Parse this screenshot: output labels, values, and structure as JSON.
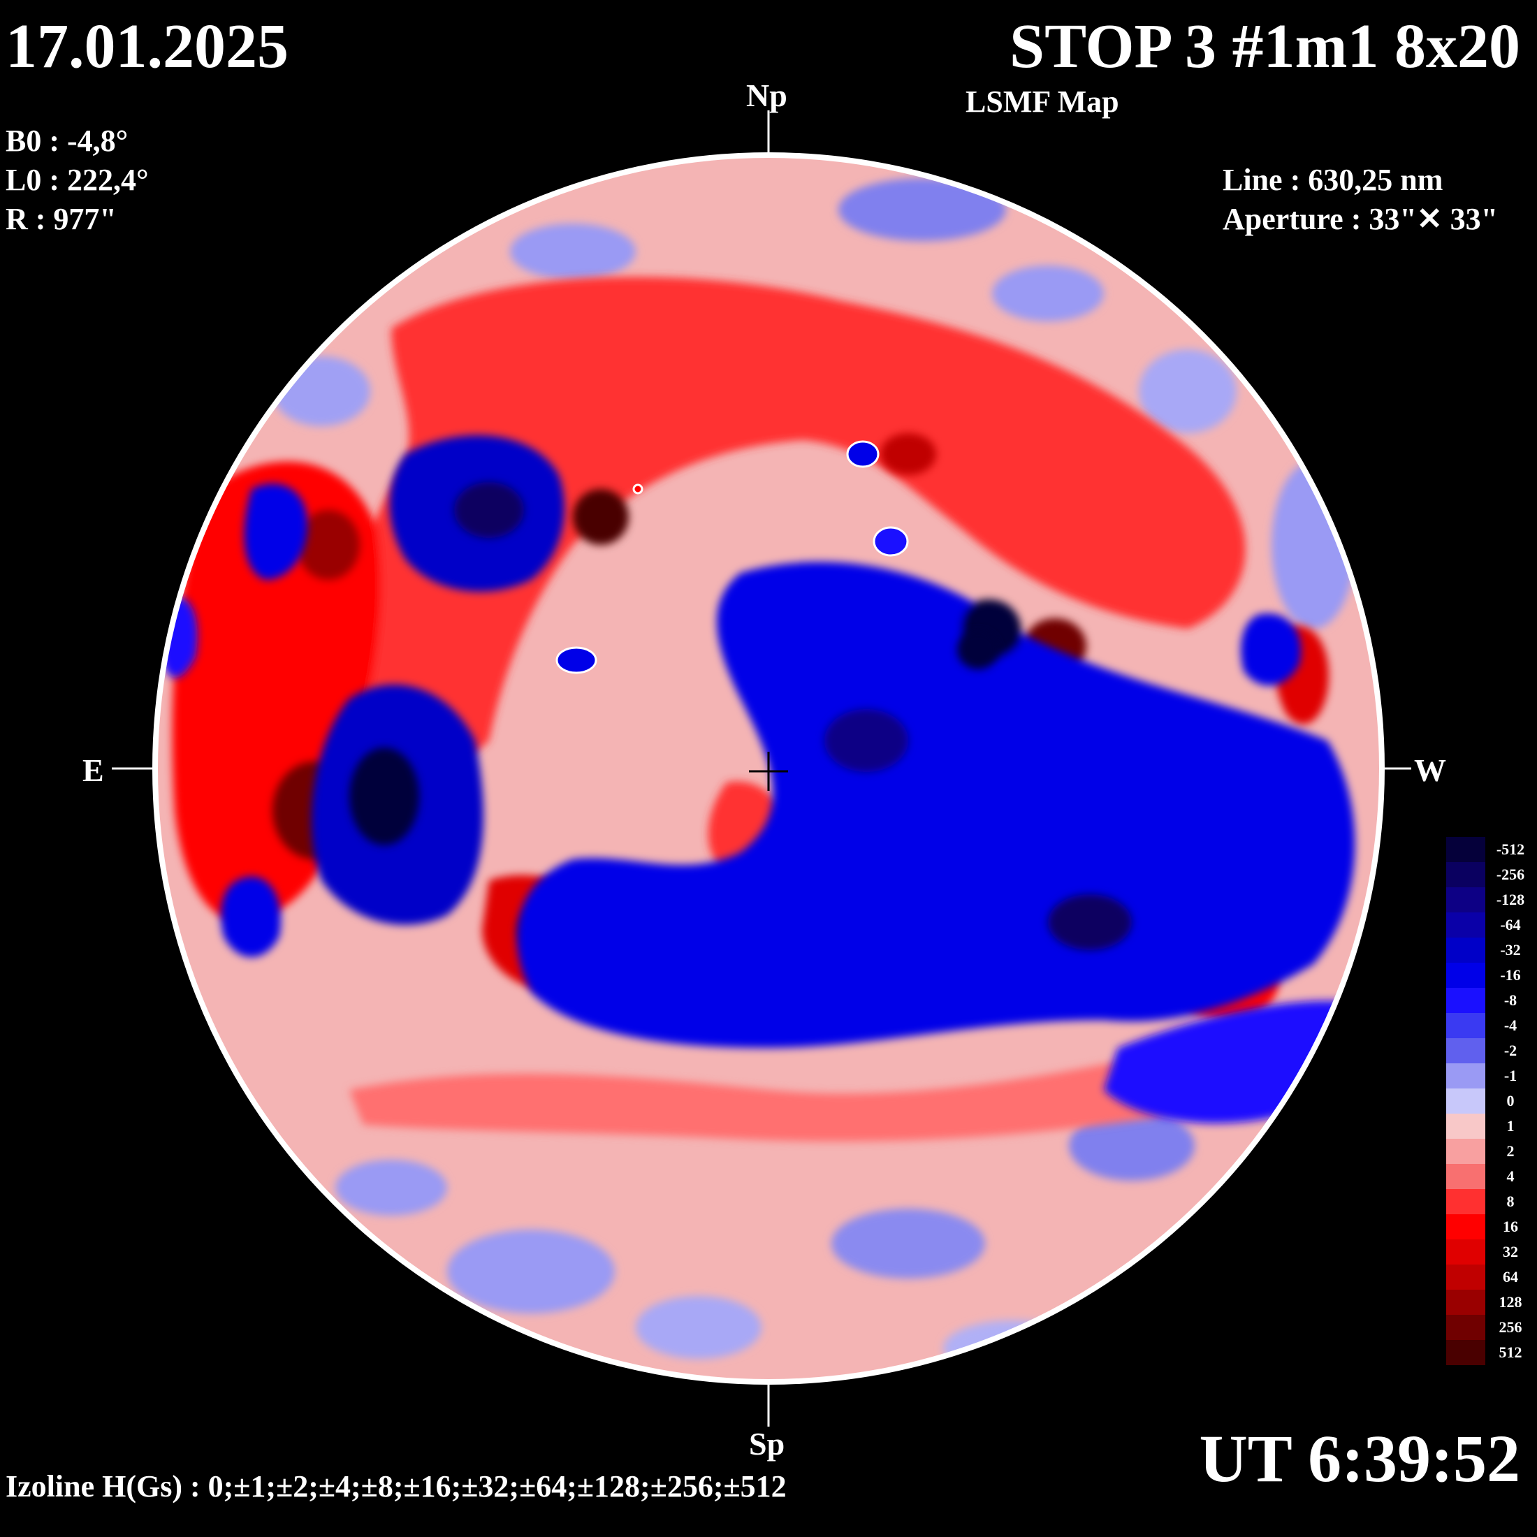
{
  "header": {
    "date": "17.01.2025",
    "title": "STOP 3 #1m1 8x20",
    "subtitle": "LSMF  Map"
  },
  "parameters": [
    {
      "label": "B0",
      "value": "B0 : -4,8°"
    },
    {
      "label": "L0",
      "value": "L0 : 222,4°"
    },
    {
      "label": "R",
      "value": "R  : 977\""
    }
  ],
  "instrument": {
    "line": "Line :  630,25 nm",
    "aperture": "Aperture : 33\"✕ 33\""
  },
  "directions": {
    "north": "Np",
    "south": "Sp",
    "east": "E",
    "west": "W"
  },
  "time": "UT 6:39:52",
  "isolines": "Izoline H(Gs) : 0;±1;±2;±4;±8;±16;±32;±64;±128;±256;±512",
  "colorbar": {
    "labels": [
      "-512",
      "-256",
      "-128",
      "-64",
      "-32",
      "-16",
      "-8",
      "-4",
      "-2",
      "-1",
      "0",
      "1",
      "2",
      "4",
      "8",
      "16",
      "32",
      "64",
      "128",
      "256",
      "512"
    ],
    "colors": [
      "#05003a",
      "#0a0060",
      "#0d0085",
      "#0a00a8",
      "#0000c8",
      "#0000e8",
      "#1a10ff",
      "#3a3af2",
      "#6060ee",
      "#9a9af4",
      "#c8c8fa",
      "#f8c8c8",
      "#f8a0a0",
      "#f87070",
      "#ff3030",
      "#ff0000",
      "#e00000",
      "#c00000",
      "#9a0000",
      "#700000",
      "#4a0000"
    ]
  },
  "colors": {
    "background": "#000000",
    "disk_base": "#f0a8a8",
    "positive": "#ff0000",
    "negative": "#0000e0",
    "isoline_zero": "#ffffff"
  }
}
